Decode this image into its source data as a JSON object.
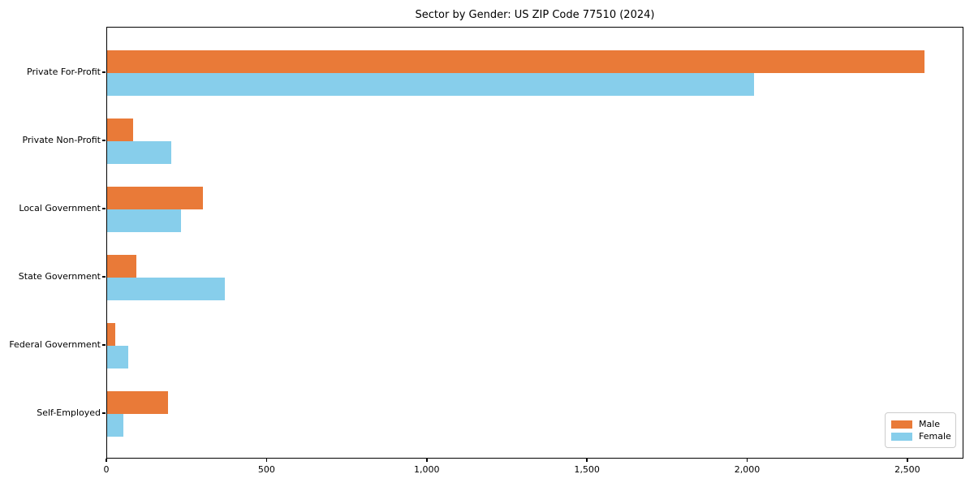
{
  "chart_data": {
    "type": "bar",
    "orientation": "horizontal",
    "title": "Sector by Gender: US ZIP Code 77510 (2024)",
    "xlabel": "",
    "ylabel": "",
    "categories": [
      "Private For-Profit",
      "Private Non-Profit",
      "Local Government",
      "State Government",
      "Federal Government",
      "Self-Employed"
    ],
    "series": [
      {
        "name": "Male",
        "color": "#E97A38",
        "values": [
          2550,
          82,
          300,
          92,
          25,
          190
        ]
      },
      {
        "name": "Female",
        "color": "#87CEEB",
        "values": [
          2020,
          200,
          230,
          368,
          65,
          50
        ]
      }
    ],
    "xlim": [
      0,
      2675
    ],
    "xticks": [
      {
        "value": 0,
        "label": "0"
      },
      {
        "value": 500,
        "label": "500"
      },
      {
        "value": 1000,
        "label": "1,000"
      },
      {
        "value": 1500,
        "label": "1,500"
      },
      {
        "value": 2000,
        "label": "2,000"
      },
      {
        "value": 2500,
        "label": "2,500"
      }
    ],
    "grid": false,
    "legend_position": "lower right"
  }
}
